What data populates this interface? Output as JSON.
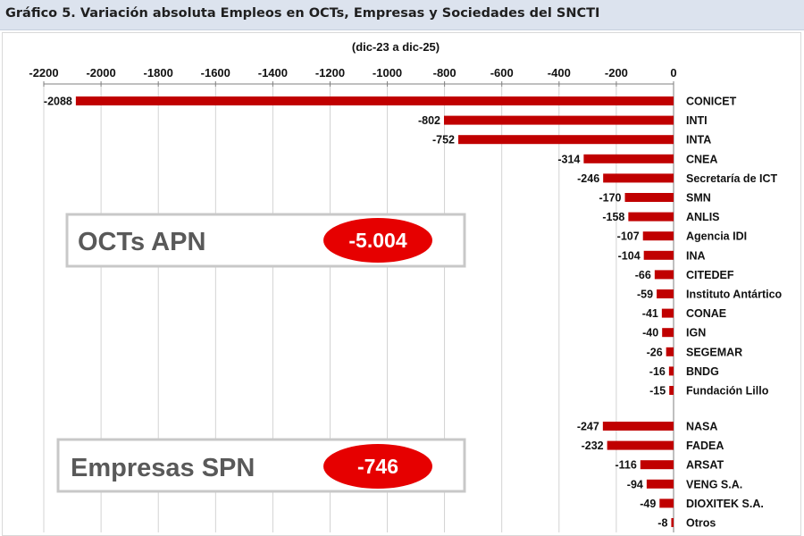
{
  "header": {
    "title": "Gráfico 5. Variación absoluta Empleos en OCTs, Empresas y Sociedades del SNCTI"
  },
  "colors": {
    "bar": "#c00000",
    "grid": "#c8c8c8",
    "callout_fill": "#e60000",
    "callout_border": "#c8c8c8"
  },
  "callouts": [
    {
      "label": "OCTs APN",
      "value": "-5.004"
    },
    {
      "label": "Empresas SPN",
      "value": "-746"
    }
  ],
  "chart_data": {
    "type": "bar",
    "orientation": "horizontal",
    "title": "Gráfico 5. Variación absoluta Empleos en OCTs, Empresas y Sociedades del SNCTI",
    "subtitle": "(dic-23 a dic-25)",
    "xlim": [
      -2200,
      0
    ],
    "x_ticks": [
      -2200,
      -2000,
      -1800,
      -1600,
      -1400,
      -1200,
      -1000,
      -800,
      -600,
      -400,
      -200,
      0
    ],
    "x_tick_labels": [
      "-2200",
      "-2000",
      "-1800",
      "-1600",
      "-1400",
      "-1200",
      "-1000",
      "-800",
      "-600",
      "-400",
      "-200",
      "0"
    ],
    "grid": "vertical",
    "axis_position": "top",
    "groups": [
      {
        "name": "OCTs APN",
        "categories": [
          "CONICET",
          "INTI",
          "INTA",
          "CNEA",
          "Secretaría de ICT",
          "SMN",
          "ANLIS",
          "Agencia IDI",
          "INA",
          "CITEDEF",
          "Instituto Antártico",
          "CONAE",
          "IGN",
          "SEGEMAR",
          "BNDG",
          "Fundación Lillo"
        ],
        "values": [
          -2088,
          -802,
          -752,
          -314,
          -246,
          -170,
          -158,
          -107,
          -104,
          -66,
          -59,
          -41,
          -40,
          -26,
          -16,
          -15
        ],
        "total": "-5.004"
      },
      {
        "name": "Empresas SPN",
        "categories": [
          "NASA",
          "FADEA",
          "ARSAT",
          "VENG S.A.",
          "DIOXITEK S.A.",
          "Otros"
        ],
        "values": [
          -247,
          -232,
          -116,
          -94,
          -49,
          -8
        ],
        "total": "-746"
      }
    ]
  }
}
